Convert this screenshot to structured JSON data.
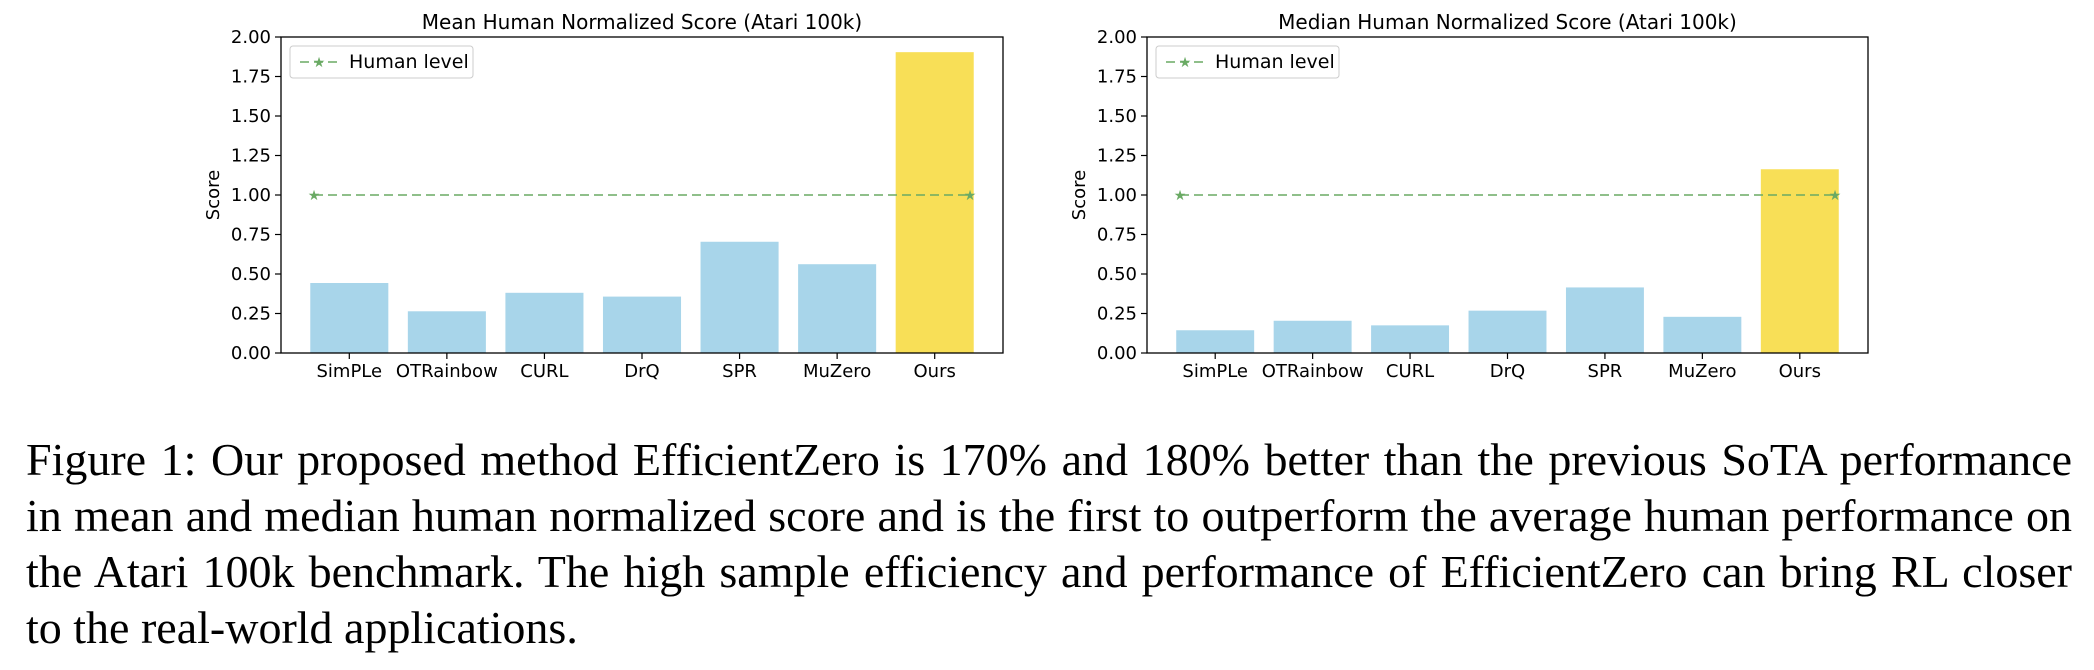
{
  "chart_data": [
    {
      "type": "bar",
      "title": "Mean Human Normalized Score (Atari 100k)",
      "xlabel": "",
      "ylabel": "Score",
      "ylim": [
        0,
        2
      ],
      "yticks": [
        "0.00",
        "0.25",
        "0.50",
        "0.75",
        "1.00",
        "1.25",
        "1.50",
        "1.75",
        "2.00"
      ],
      "categories": [
        "SimPLe",
        "OTRainbow",
        "CURL",
        "DrQ",
        "SPR",
        "MuZero",
        "Ours"
      ],
      "values": [
        0.443,
        0.264,
        0.381,
        0.357,
        0.704,
        0.562,
        1.904
      ],
      "bar_colors": [
        "#a8d5ea",
        "#a8d5ea",
        "#a8d5ea",
        "#a8d5ea",
        "#a8d5ea",
        "#a8d5ea",
        "#f8df57"
      ],
      "reference_line": {
        "label": "Human level",
        "y": 1.0,
        "color": "#6aaa64"
      },
      "legend": {
        "entries": [
          "Human level"
        ],
        "placement": "upper-left"
      },
      "grid": false
    },
    {
      "type": "bar",
      "title": "Median Human Normalized Score (Atari 100k)",
      "xlabel": "",
      "ylabel": "Score",
      "ylim": [
        0,
        2
      ],
      "yticks": [
        "0.00",
        "0.25",
        "0.50",
        "0.75",
        "1.00",
        "1.25",
        "1.50",
        "1.75",
        "2.00"
      ],
      "categories": [
        "SimPLe",
        "OTRainbow",
        "CURL",
        "DrQ",
        "SPR",
        "MuZero",
        "Ours"
      ],
      "values": [
        0.144,
        0.204,
        0.175,
        0.268,
        0.415,
        0.229,
        1.163
      ],
      "bar_colors": [
        "#a8d5ea",
        "#a8d5ea",
        "#a8d5ea",
        "#a8d5ea",
        "#a8d5ea",
        "#a8d5ea",
        "#f8df57"
      ],
      "reference_line": {
        "label": "Human level",
        "y": 1.0,
        "color": "#6aaa64"
      },
      "legend": {
        "entries": [
          "Human level"
        ],
        "placement": "upper-left"
      },
      "grid": false
    }
  ],
  "caption": "Figure 1: Our proposed method EfficientZero is 170% and 180% better than the previous SoTA performance in mean and median human normalized score and is the first to outperform the average human performance on the Atari 100k benchmark. The high sample efficiency and performance of EfficientZero can bring RL closer to the real-world applications."
}
